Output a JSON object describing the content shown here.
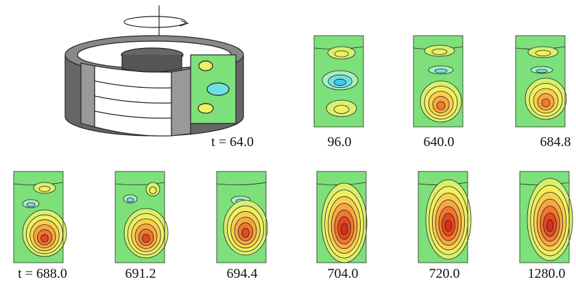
{
  "panels": [
    {
      "label": "t = 64.0"
    },
    {
      "label": "96.0"
    },
    {
      "label": "640.0"
    },
    {
      "label": "684.8"
    },
    {
      "label": "t = 688.0"
    },
    {
      "label": "691.2"
    },
    {
      "label": "694.4"
    },
    {
      "label": "704.0"
    },
    {
      "label": "720.0"
    },
    {
      "label": "1280.0"
    }
  ]
}
